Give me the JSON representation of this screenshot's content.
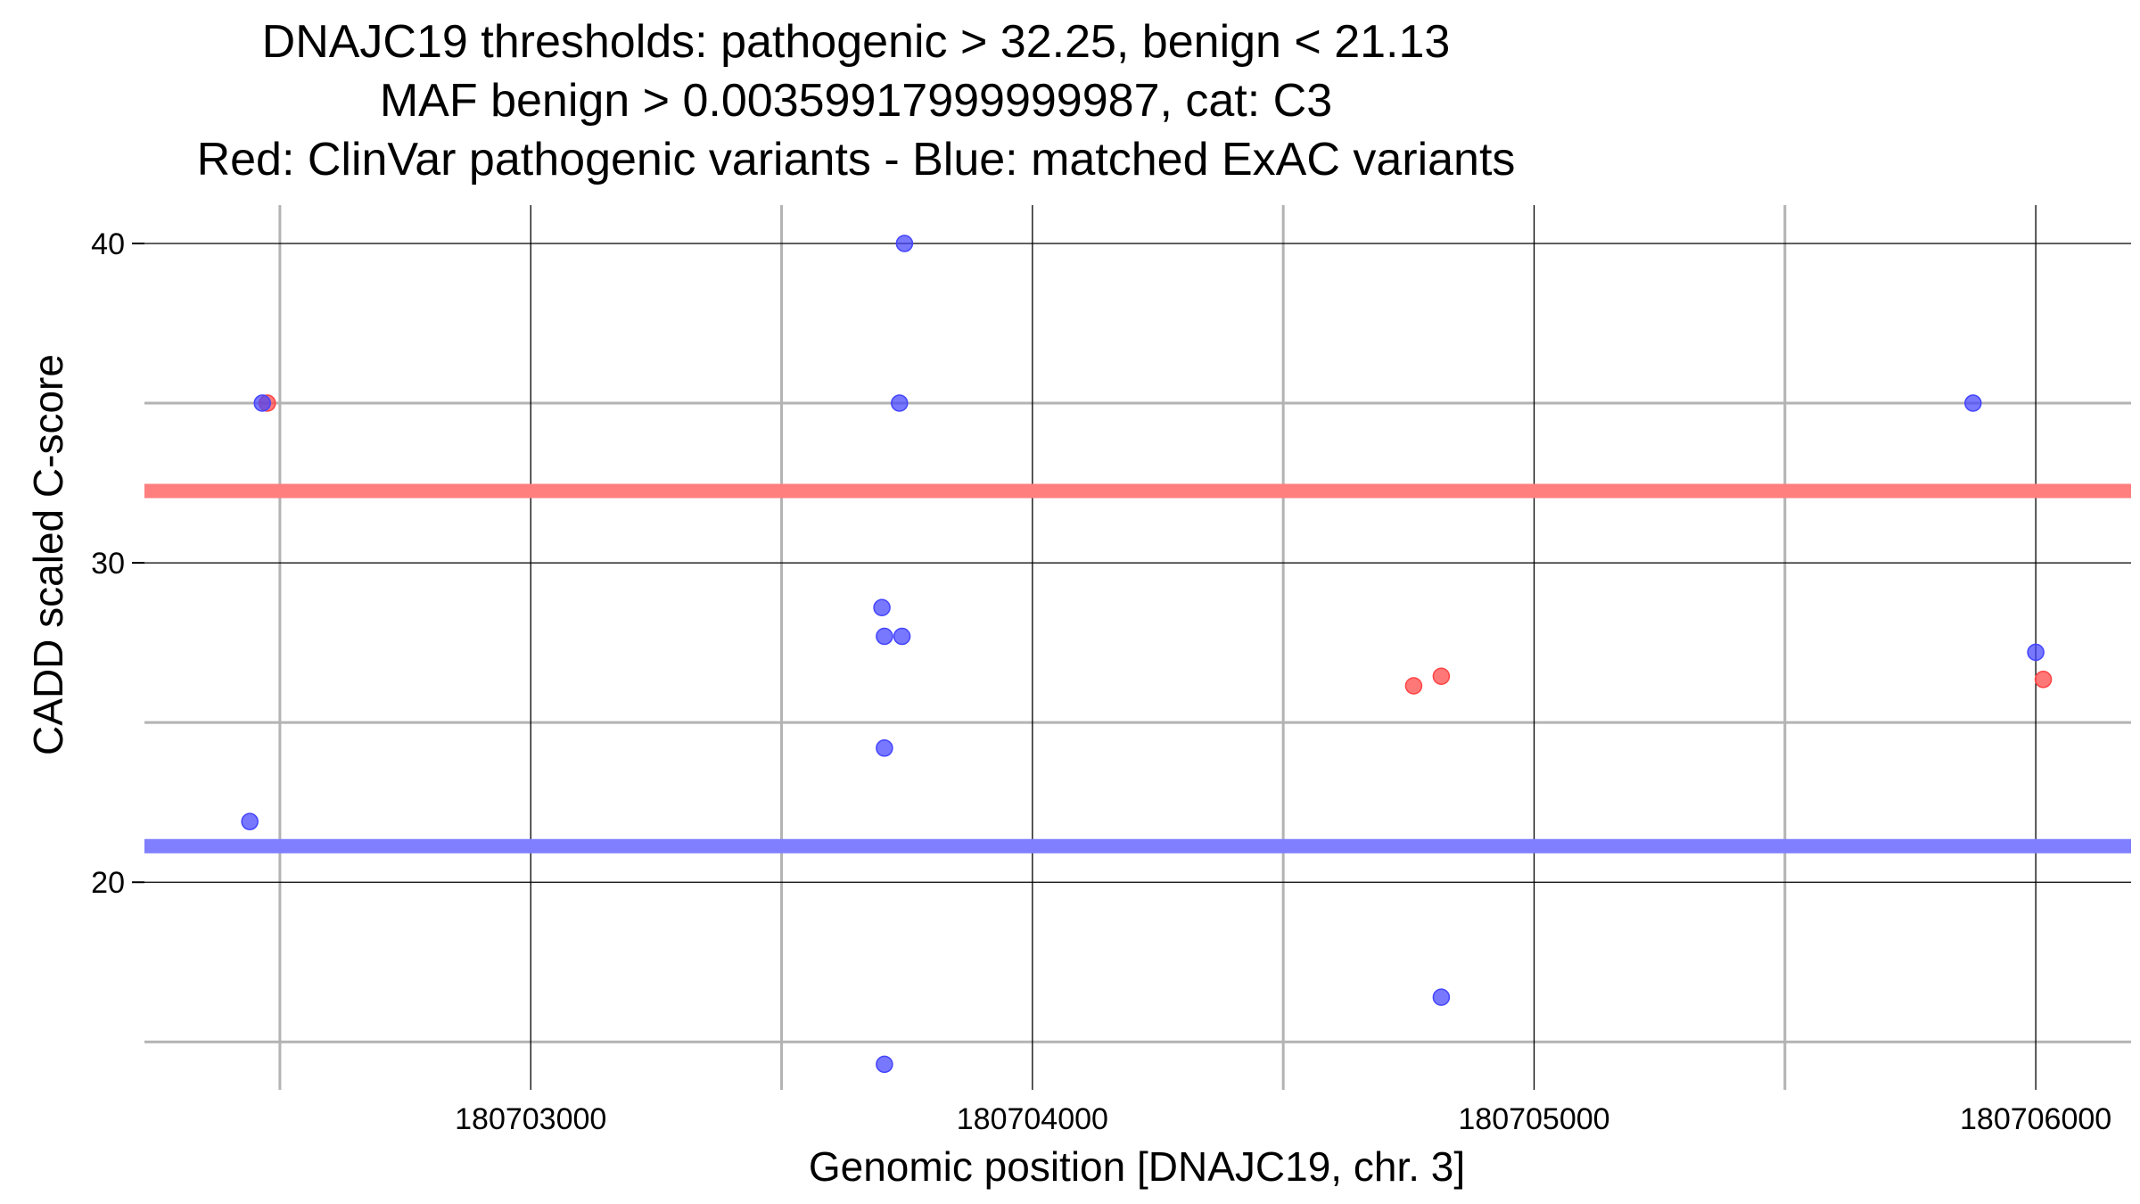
{
  "chart_data": {
    "type": "scatter",
    "title_lines": [
      "DNAJC19 thresholds: pathogenic > 32.25, benign < 21.13",
      "MAF benign > 0.00359917999999987, cat: C3",
      "Red: ClinVar pathogenic variants - Blue: matched ExAC variants"
    ],
    "xlabel": "Genomic position [DNAJC19, chr. 3]",
    "ylabel": "CADD scaled C-score",
    "xlim": [
      180702230,
      180706190
    ],
    "ylim": [
      13.5,
      41.2
    ],
    "x_ticks": [
      180703000,
      180704000,
      180705000,
      180706000
    ],
    "x_tick_labels": [
      "180703000",
      "180704000",
      "180705000",
      "180706000"
    ],
    "x_minor_gridlines": [
      180702500,
      180703500,
      180704500,
      180705500
    ],
    "y_ticks": [
      20,
      30,
      40
    ],
    "y_tick_labels": [
      "20",
      "30",
      "40"
    ],
    "y_minor_gridlines": [
      15,
      25,
      35
    ],
    "thresholds": [
      {
        "name": "pathogenic",
        "value": 32.25,
        "color": "#ff7f7f"
      },
      {
        "name": "benign",
        "value": 21.13,
        "color": "#7f7fff"
      }
    ],
    "series": [
      {
        "name": "ClinVar pathogenic variants",
        "color": "#ff4444",
        "points": [
          {
            "x": 180702475,
            "y": 35.0
          },
          {
            "x": 180704760,
            "y": 26.15
          },
          {
            "x": 180704815,
            "y": 26.45
          },
          {
            "x": 180706015,
            "y": 26.35
          }
        ]
      },
      {
        "name": "matched ExAC variants",
        "color": "#4444ff",
        "points": [
          {
            "x": 180702440,
            "y": 21.9
          },
          {
            "x": 180702465,
            "y": 35.0
          },
          {
            "x": 180703745,
            "y": 40.0
          },
          {
            "x": 180703735,
            "y": 35.0
          },
          {
            "x": 180703700,
            "y": 28.6
          },
          {
            "x": 180703705,
            "y": 27.7
          },
          {
            "x": 180703740,
            "y": 27.7
          },
          {
            "x": 180703705,
            "y": 24.2
          },
          {
            "x": 180703705,
            "y": 14.3
          },
          {
            "x": 180704815,
            "y": 16.4
          },
          {
            "x": 180705875,
            "y": 35.0
          },
          {
            "x": 180706000,
            "y": 27.2
          }
        ]
      }
    ]
  }
}
